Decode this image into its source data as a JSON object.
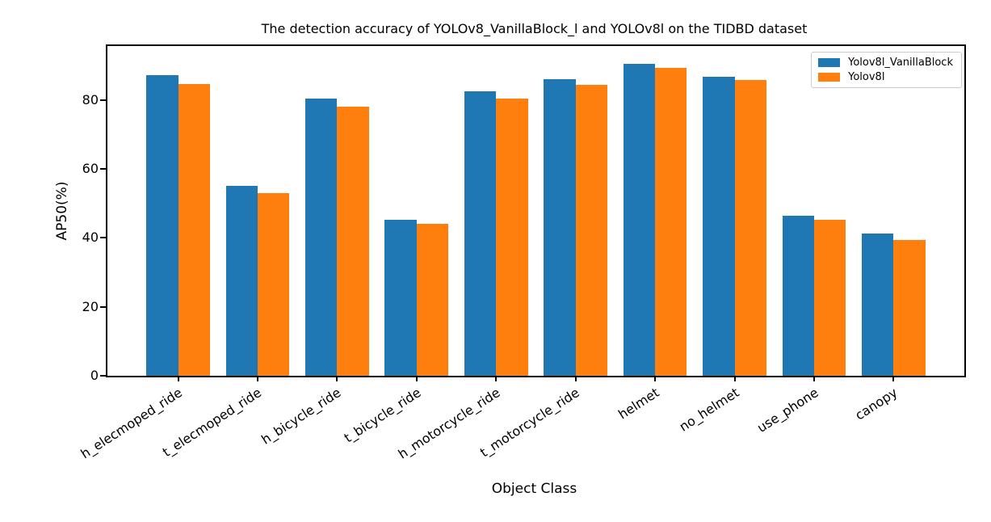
{
  "title": "The detection accuracy of YOLOv8_VanillaBlock_l and YOLOv8l on the TIDBD dataset",
  "chart_data": {
    "type": "bar",
    "title": "The detection accuracy of YOLOv8_VanillaBlock_l and YOLOv8l on the TIDBD dataset",
    "xlabel": "Object Class",
    "ylabel": "AP50(%)",
    "categories": [
      "h_elecmoped_ride",
      "t_elecmoped_ride",
      "h_bicycle_ride",
      "t_bicycle_ride",
      "h_motorcycle_ride",
      "t_motorcycle_ride",
      "helmet",
      "no_helmet",
      "use_phone",
      "canopy"
    ],
    "series": [
      {
        "name": "Yolov8l_VanillaBlock",
        "color": "#1f77b4",
        "values": [
          87.3,
          55.1,
          80.5,
          45.3,
          82.6,
          86.0,
          90.5,
          86.9,
          46.4,
          41.3
        ]
      },
      {
        "name": "Yolov8l",
        "color": "#ff7f0e",
        "values": [
          84.6,
          53.0,
          78.1,
          44.0,
          80.4,
          84.4,
          89.3,
          85.9,
          45.3,
          39.5
        ]
      }
    ],
    "yticks": [
      0,
      20,
      40,
      60,
      80
    ],
    "ylim": [
      0,
      95.7
    ],
    "xlim": [
      -0.89,
      9.89
    ],
    "bar_width_units": 0.4,
    "x_tick_rotation_deg": 33,
    "legend_position": "upper right",
    "grid": false
  },
  "colors": {
    "background": "#ffffff",
    "spine": "#000000",
    "text": "#000000",
    "legend_border": "#cccccc",
    "series_blue": "#1f77b4",
    "series_orange": "#ff7f0e"
  }
}
